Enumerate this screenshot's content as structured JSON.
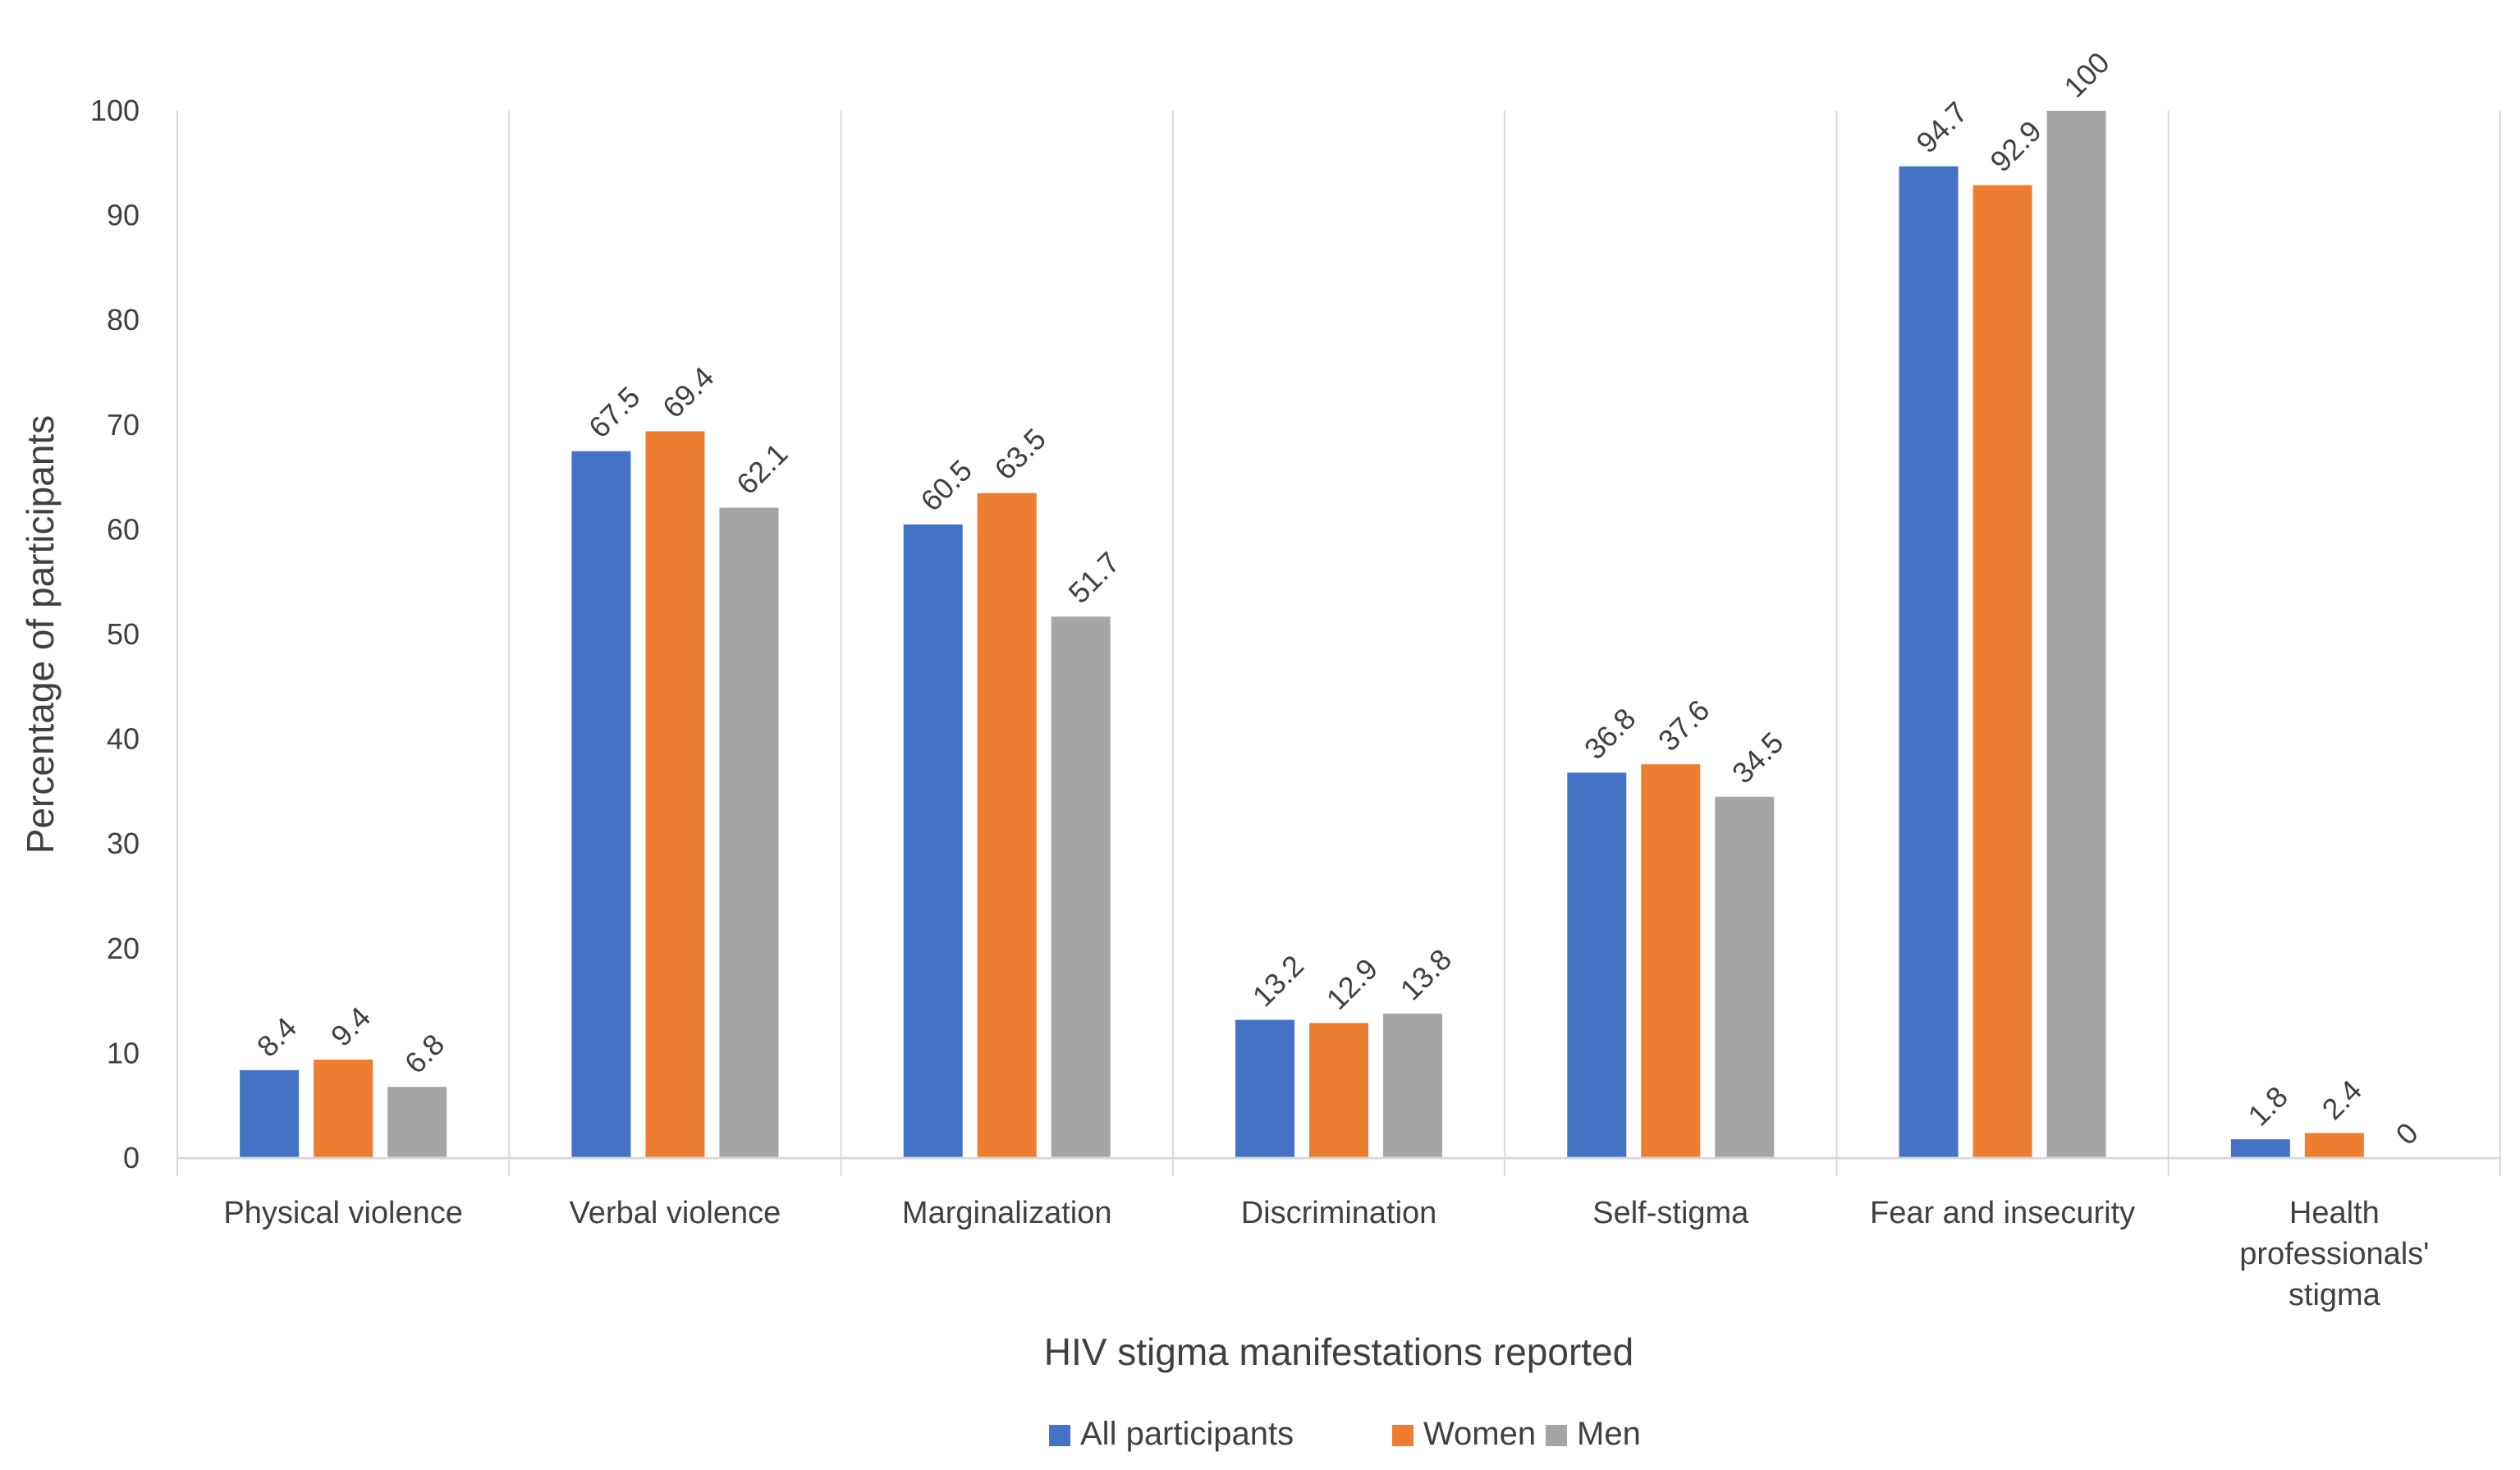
{
  "chart_data": {
    "type": "bar",
    "title": "",
    "xlabel": "HIV stigma manifestations reported",
    "ylabel": "Percentage of participants",
    "ylim": [
      0,
      100
    ],
    "yticks": [
      0,
      10,
      20,
      30,
      40,
      50,
      60,
      70,
      80,
      90,
      100
    ],
    "categories": [
      [
        "Physical violence"
      ],
      [
        "Verbal violence"
      ],
      [
        "Marginalization"
      ],
      [
        "Discrimination"
      ],
      [
        "Self-stigma"
      ],
      [
        "Fear and insecurity"
      ],
      [
        "Health",
        "professionals'",
        "stigma"
      ]
    ],
    "series": [
      {
        "name": "All participants",
        "color": "#4472C4",
        "values": [
          8.4,
          67.5,
          60.5,
          13.2,
          36.8,
          94.7,
          1.8
        ]
      },
      {
        "name": "Women",
        "color": "#ED7D31",
        "values": [
          9.4,
          69.4,
          63.5,
          12.9,
          37.6,
          92.9,
          2.4
        ]
      },
      {
        "name": "Men",
        "color": "#A5A5A5",
        "values": [
          6.8,
          62.1,
          51.7,
          13.8,
          34.5,
          100,
          0
        ]
      }
    ],
    "legend_position": "bottom",
    "grid": "vertical category separators"
  }
}
